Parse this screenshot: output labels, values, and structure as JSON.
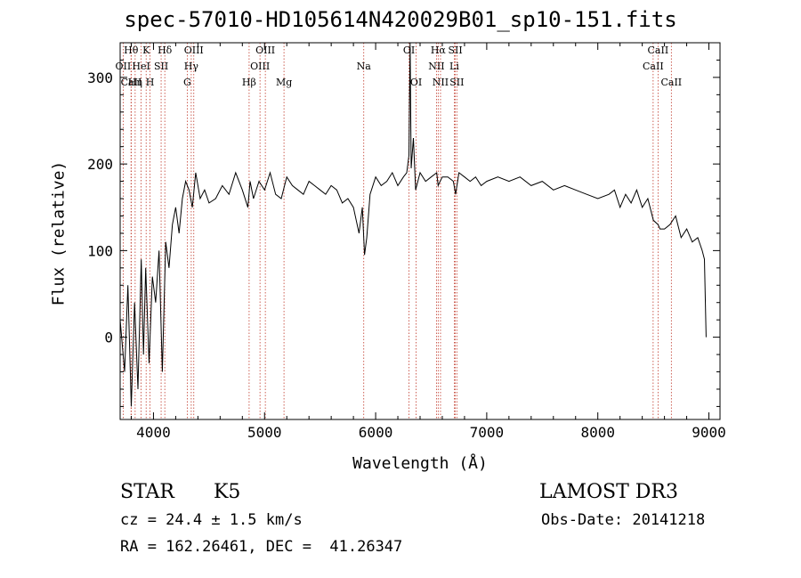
{
  "chart_data": {
    "type": "line",
    "title": "spec-57010-HD105614N420029B01_sp10-151.fits",
    "xlabel": "Wavelength (Å)",
    "ylabel": "Flux (relative)",
    "xlim": [
      3700,
      9100
    ],
    "ylim": [
      -95,
      340
    ],
    "xticks": [
      4000,
      5000,
      6000,
      7000,
      8000,
      9000
    ],
    "yticks": [
      0,
      100,
      200,
      300
    ],
    "series": [
      {
        "name": "spectrum",
        "x": [
          3700,
          3740,
          3770,
          3800,
          3830,
          3860,
          3890,
          3910,
          3930,
          3960,
          3990,
          4020,
          4050,
          4080,
          4110,
          4140,
          4170,
          4200,
          4230,
          4260,
          4290,
          4320,
          4350,
          4380,
          4420,
          4460,
          4500,
          4560,
          4620,
          4680,
          4740,
          4800,
          4850,
          4870,
          4900,
          4950,
          5000,
          5050,
          5100,
          5150,
          5200,
          5250,
          5300,
          5350,
          5400,
          5450,
          5500,
          5550,
          5600,
          5650,
          5700,
          5750,
          5800,
          5850,
          5880,
          5900,
          5920,
          5950,
          6000,
          6050,
          6100,
          6150,
          6200,
          6250,
          6280,
          6300,
          6310,
          6320,
          6340,
          6360,
          6400,
          6450,
          6500,
          6550,
          6563,
          6580,
          6600,
          6650,
          6700,
          6720,
          6750,
          6800,
          6850,
          6900,
          6950,
          7000,
          7100,
          7200,
          7300,
          7400,
          7500,
          7600,
          7700,
          7800,
          7900,
          8000,
          8100,
          8150,
          8200,
          8250,
          8300,
          8350,
          8400,
          8450,
          8500,
          8542,
          8560,
          8600,
          8650,
          8700,
          8750,
          8800,
          8850,
          8900,
          8940,
          8960,
          8975
        ],
        "y": [
          20,
          -40,
          60,
          -80,
          40,
          -60,
          90,
          -20,
          80,
          -30,
          70,
          40,
          100,
          -40,
          110,
          80,
          130,
          150,
          120,
          160,
          180,
          170,
          150,
          190,
          160,
          170,
          155,
          160,
          175,
          165,
          190,
          170,
          150,
          180,
          160,
          180,
          170,
          190,
          165,
          160,
          185,
          175,
          170,
          165,
          180,
          175,
          170,
          165,
          175,
          170,
          155,
          160,
          150,
          120,
          150,
          95,
          115,
          165,
          185,
          175,
          180,
          190,
          175,
          185,
          190,
          210,
          340,
          195,
          230,
          170,
          190,
          180,
          185,
          190,
          175,
          180,
          185,
          185,
          180,
          165,
          190,
          185,
          180,
          185,
          175,
          180,
          185,
          180,
          185,
          175,
          180,
          170,
          175,
          170,
          165,
          160,
          165,
          170,
          150,
          165,
          155,
          170,
          150,
          160,
          135,
          130,
          125,
          125,
          130,
          140,
          115,
          125,
          110,
          115,
          100,
          90,
          0
        ]
      }
    ],
    "lines": [
      {
        "name": "Hθ",
        "wl": 3798,
        "row": 0
      },
      {
        "name": "OII",
        "wl": 3727,
        "row": 1
      },
      {
        "name": "CaII",
        "wl": 3800,
        "row": 2
      },
      {
        "name": "Hη",
        "wl": 3835,
        "row": 2
      },
      {
        "name": "HeI",
        "wl": 3889,
        "row": 1
      },
      {
        "name": "K",
        "wl": 3934,
        "row": 0
      },
      {
        "name": "H",
        "wl": 3969,
        "row": 2
      },
      {
        "name": "SII",
        "wl": 4069,
        "row": 1
      },
      {
        "name": "Hδ",
        "wl": 4102,
        "row": 0
      },
      {
        "name": "OIII",
        "wl": 4363,
        "row": 0
      },
      {
        "name": "Hγ",
        "wl": 4340,
        "row": 1
      },
      {
        "name": "G",
        "wl": 4304,
        "row": 2
      },
      {
        "name": "OIII",
        "wl": 5007,
        "row": 0
      },
      {
        "name": "OIII",
        "wl": 4959,
        "row": 1
      },
      {
        "name": "Hβ",
        "wl": 4861,
        "row": 2
      },
      {
        "name": "Mg",
        "wl": 5175,
        "row": 2
      },
      {
        "name": "Na",
        "wl": 5893,
        "row": 1
      },
      {
        "name": "OI",
        "wl": 6300,
        "row": 0
      },
      {
        "name": "OI",
        "wl": 6364,
        "row": 2
      },
      {
        "name": "Hα",
        "wl": 6563,
        "row": 0
      },
      {
        "name": "SII",
        "wl": 6717,
        "row": 0
      },
      {
        "name": "NII",
        "wl": 6548,
        "row": 1
      },
      {
        "name": "Li",
        "wl": 6708,
        "row": 1
      },
      {
        "name": "NII",
        "wl": 6584,
        "row": 2
      },
      {
        "name": "SII",
        "wl": 6731,
        "row": 2
      },
      {
        "name": "CaII",
        "wl": 8542,
        "row": 0
      },
      {
        "name": "CaII",
        "wl": 8498,
        "row": 1
      },
      {
        "name": "CaII",
        "wl": 8662,
        "row": 2
      }
    ]
  },
  "info": {
    "class": "STAR",
    "subclass": "K5",
    "survey": "LAMOST DR3",
    "cz": "cz = 24.4 ± 1.5 km/s",
    "obsdate": "Obs-Date: 20141218",
    "radec": "RA = 162.26461, DEC =  41.26347"
  },
  "colors": {
    "lines": "#c0392b",
    "axis": "#000000",
    "spectrum": "#000000"
  }
}
